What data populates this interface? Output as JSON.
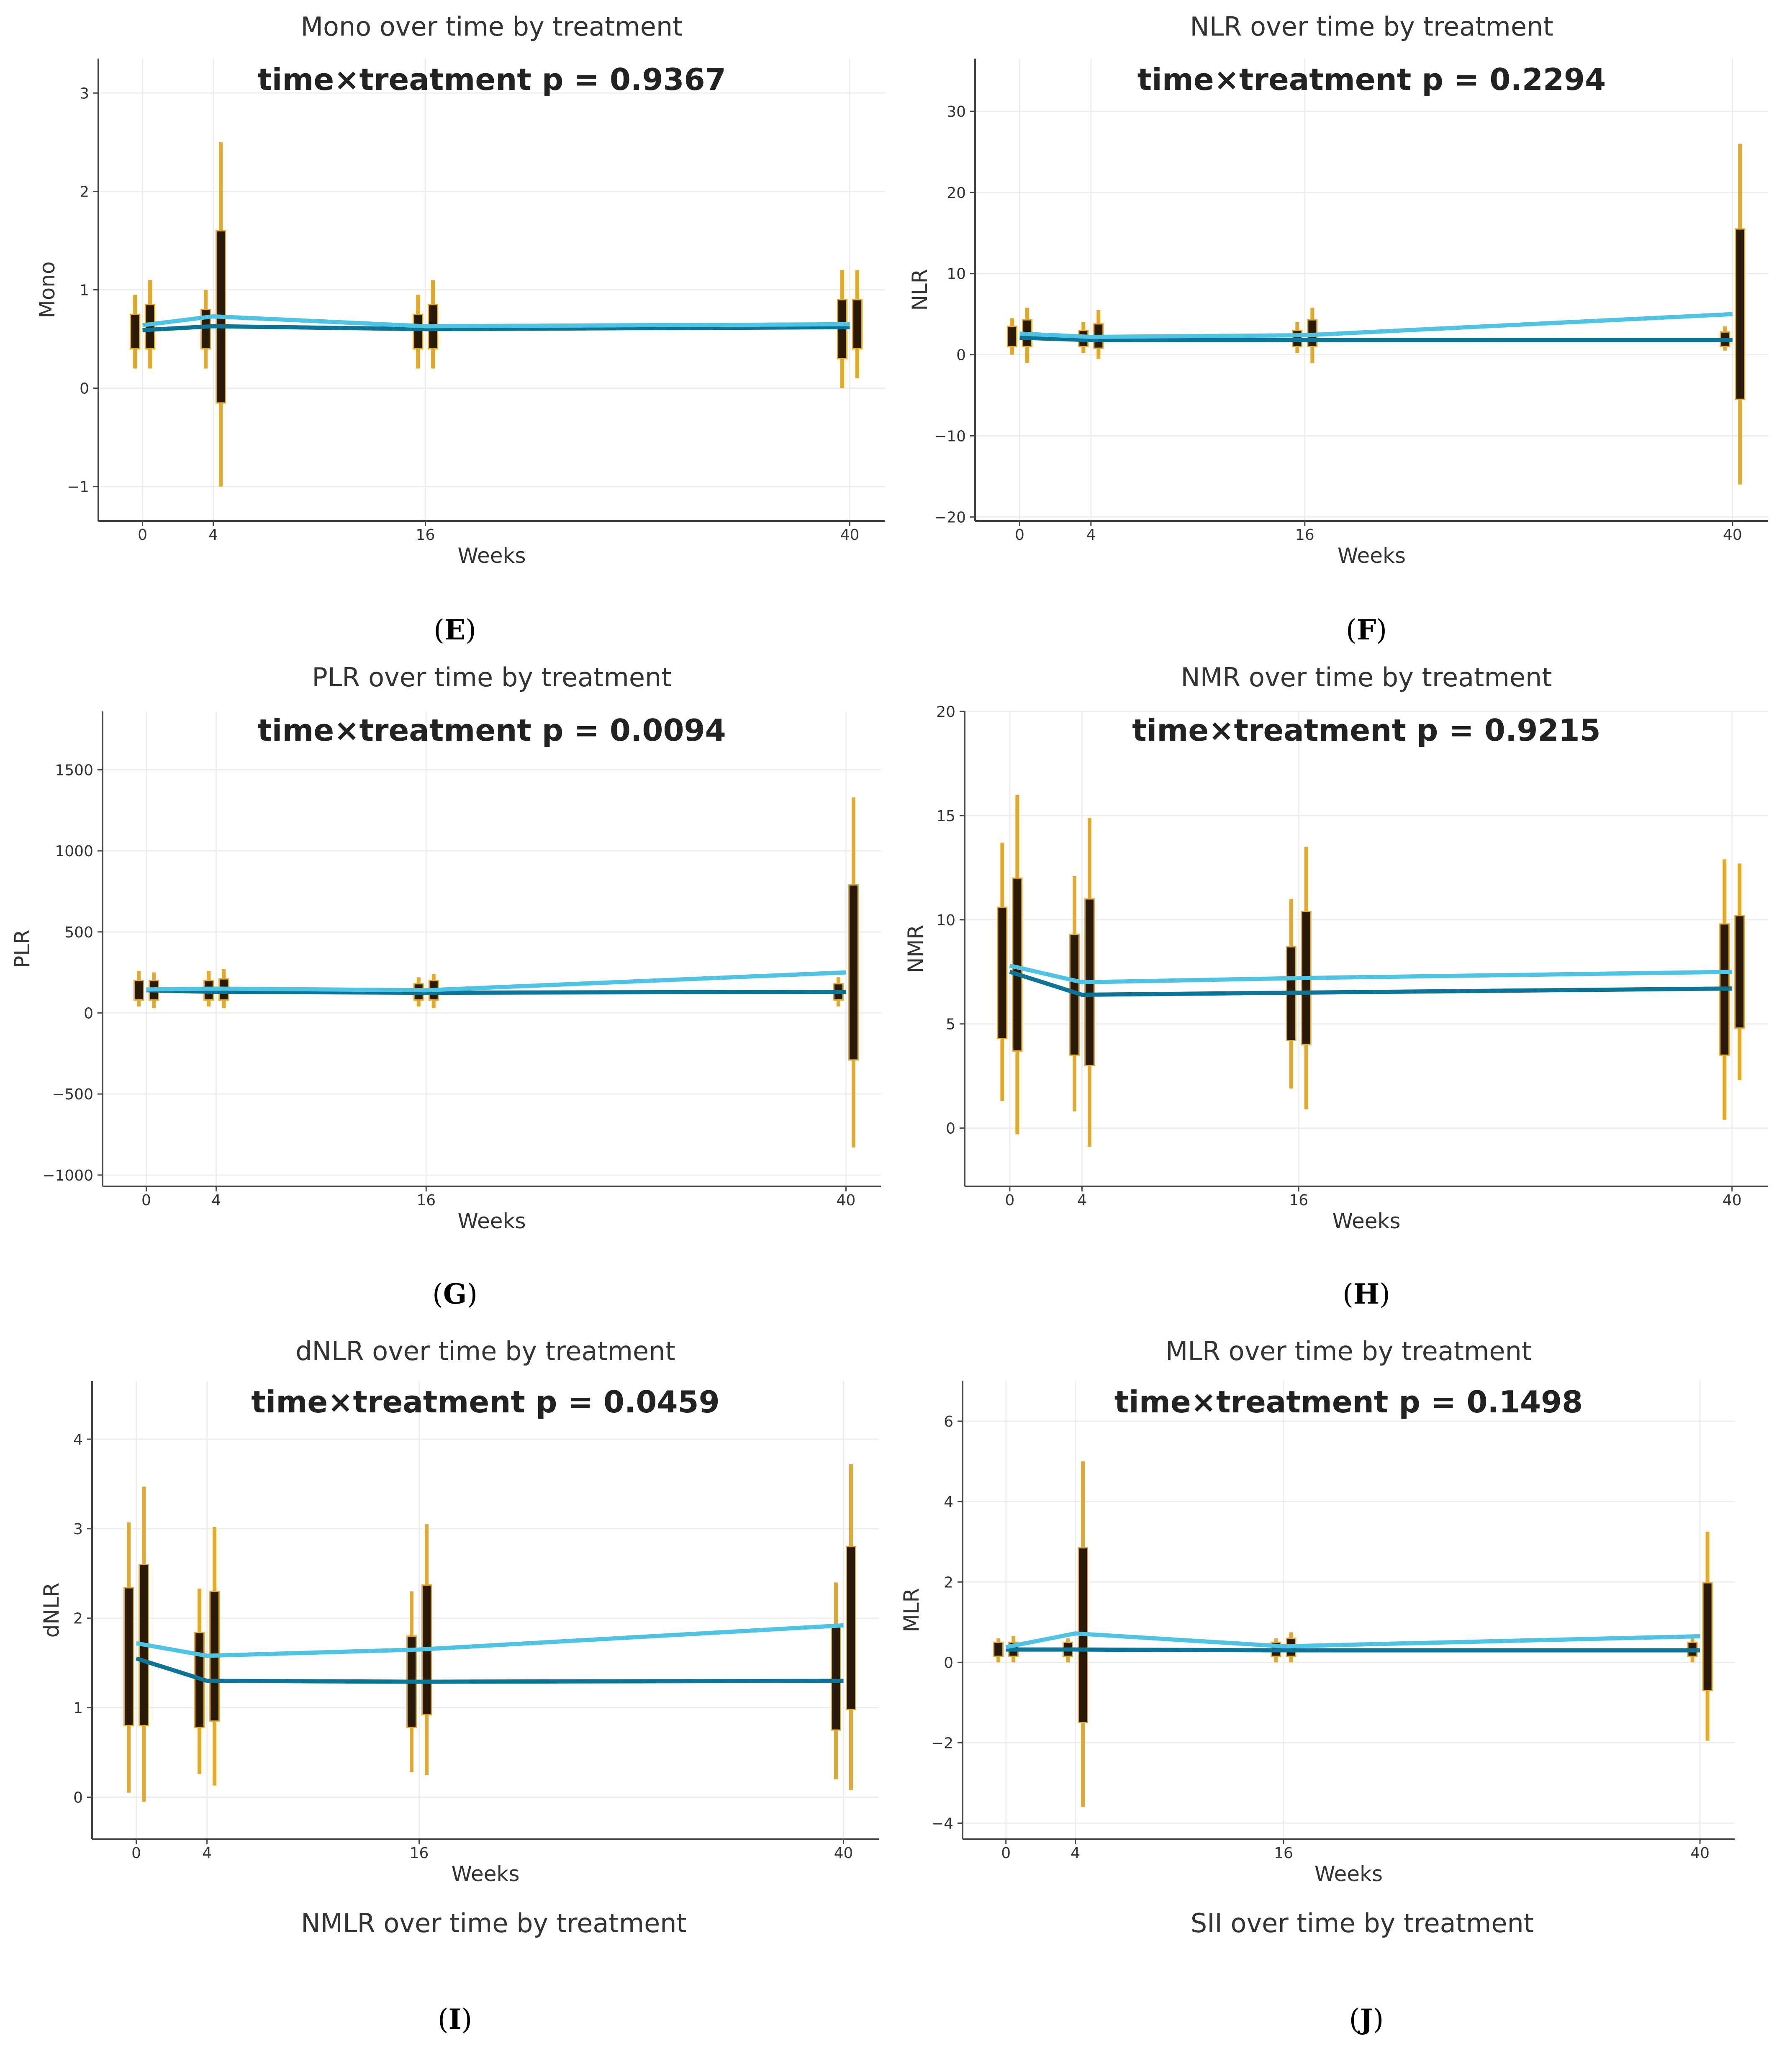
{
  "colors": {
    "whisker": "#E5A92A",
    "box": "#2A1A0A",
    "series_dark": "#0B7497",
    "series_light": "#4FC3E3",
    "axis": "#444444",
    "grid": "#EDEDED"
  },
  "panel_labels": {
    "E": "E",
    "F": "F",
    "G": "G",
    "H": "H",
    "I": "I",
    "J": "J"
  },
  "extra_titles": [
    "NMLR over time by treatment",
    "SII over time by treatment"
  ],
  "chart_data": [
    {
      "id": "mono",
      "label": "E",
      "type": "line",
      "title": "Mono over time by treatment",
      "subtitle": "time×treatment p = 0.9367",
      "xlabel": "Weeks",
      "ylabel": "Mono",
      "x": [
        0,
        4,
        16,
        40
      ],
      "xticks": [
        "0",
        "4",
        "16",
        "40"
      ],
      "ylim": [
        -1.35,
        3.35
      ],
      "yticks": [
        -1,
        0,
        1,
        2,
        3
      ],
      "ytick_labels": [
        "−1",
        "0",
        "1",
        "2",
        "3"
      ],
      "grid": true,
      "series": [
        {
          "values": [
            0.59,
            0.63,
            0.6,
            0.62
          ]
        },
        {
          "values": [
            0.64,
            0.73,
            0.63,
            0.65
          ]
        }
      ],
      "boxes": [
        [
          {
            "whisker": [
              0.2,
              0.95
            ],
            "box": [
              0.4,
              0.75
            ]
          },
          {
            "whisker": [
              0.2,
              1.1
            ],
            "box": [
              0.4,
              0.85
            ]
          }
        ],
        [
          {
            "whisker": [
              0.2,
              1.0
            ],
            "box": [
              0.4,
              0.8
            ]
          },
          {
            "whisker": [
              -1.0,
              2.5
            ],
            "box": [
              -0.15,
              1.6
            ]
          }
        ],
        [
          {
            "whisker": [
              0.2,
              0.95
            ],
            "box": [
              0.4,
              0.75
            ]
          },
          {
            "whisker": [
              0.2,
              1.1
            ],
            "box": [
              0.4,
              0.85
            ]
          }
        ],
        [
          {
            "whisker": [
              0.0,
              1.2
            ],
            "box": [
              0.3,
              0.9
            ]
          },
          {
            "whisker": [
              0.1,
              1.2
            ],
            "box": [
              0.4,
              0.9
            ]
          }
        ]
      ]
    },
    {
      "id": "nlr",
      "label": "F",
      "type": "line",
      "title": "NLR over time by treatment",
      "subtitle": "time×treatment p = 0.2294",
      "xlabel": "Weeks",
      "ylabel": "NLR",
      "x": [
        0,
        4,
        16,
        40
      ],
      "xticks": [
        "0",
        "4",
        "16",
        "40"
      ],
      "ylim": [
        -20.5,
        36.5
      ],
      "yticks": [
        -20,
        -10,
        0,
        10,
        20,
        30
      ],
      "ytick_labels": [
        "−20",
        "−10",
        "0",
        "10",
        "20",
        "30"
      ],
      "grid": true,
      "series": [
        {
          "values": [
            2.1,
            1.8,
            1.8,
            1.8
          ]
        },
        {
          "values": [
            2.6,
            2.2,
            2.4,
            5.0
          ]
        }
      ],
      "boxes": [
        [
          {
            "whisker": [
              0.0,
              4.5
            ],
            "box": [
              1.0,
              3.5
            ]
          },
          {
            "whisker": [
              -1.0,
              5.8
            ],
            "box": [
              1.0,
              4.3
            ]
          }
        ],
        [
          {
            "whisker": [
              0.2,
              4.0
            ],
            "box": [
              1.0,
              3.0
            ]
          },
          {
            "whisker": [
              -0.5,
              5.5
            ],
            "box": [
              0.8,
              3.8
            ]
          }
        ],
        [
          {
            "whisker": [
              0.2,
              4.0
            ],
            "box": [
              1.0,
              3.0
            ]
          },
          {
            "whisker": [
              -1.0,
              5.8
            ],
            "box": [
              1.0,
              4.3
            ]
          }
        ],
        [
          {
            "whisker": [
              0.5,
              3.5
            ],
            "box": [
              1.0,
              2.8
            ]
          },
          {
            "whisker": [
              -16.0,
              26.0
            ],
            "box": [
              -5.5,
              15.5
            ]
          }
        ]
      ]
    },
    {
      "id": "plr",
      "label": "G",
      "type": "line",
      "title": "PLR over time by treatment",
      "subtitle": "time×treatment p = 0.0094",
      "xlabel": "Weeks",
      "ylabel": "PLR",
      "x": [
        0,
        4,
        16,
        40
      ],
      "xticks": [
        "0",
        "4",
        "16",
        "40"
      ],
      "ylim": [
        -1070,
        1860
      ],
      "yticks": [
        -1000,
        -500,
        0,
        500,
        1000,
        1500
      ],
      "ytick_labels": [
        "−1000",
        "−500",
        "0",
        "500",
        "1000",
        "1500"
      ],
      "grid": true,
      "series": [
        {
          "values": [
            140,
            130,
            125,
            130
          ]
        },
        {
          "values": [
            145,
            150,
            140,
            250
          ]
        }
      ],
      "boxes": [
        [
          {
            "whisker": [
              40,
              260
            ],
            "box": [
              80,
              200
            ]
          },
          {
            "whisker": [
              30,
              250
            ],
            "box": [
              80,
              200
            ]
          }
        ],
        [
          {
            "whisker": [
              40,
              260
            ],
            "box": [
              80,
              200
            ]
          },
          {
            "whisker": [
              30,
              270
            ],
            "box": [
              80,
              210
            ]
          }
        ],
        [
          {
            "whisker": [
              40,
              220
            ],
            "box": [
              80,
              180
            ]
          },
          {
            "whisker": [
              30,
              240
            ],
            "box": [
              80,
              200
            ]
          }
        ],
        [
          {
            "whisker": [
              40,
              220
            ],
            "box": [
              80,
              180
            ]
          },
          {
            "whisker": [
              -830,
              1330
            ],
            "box": [
              -290,
              790
            ]
          }
        ]
      ]
    },
    {
      "id": "nmr",
      "label": "H",
      "type": "line",
      "title": "NMR over time by treatment",
      "subtitle": "time×treatment p = 0.9215",
      "xlabel": "Weeks",
      "ylabel": "NMR",
      "x": [
        0,
        4,
        16,
        40
      ],
      "xticks": [
        "0",
        "4",
        "16",
        "40"
      ],
      "ylim": [
        -2.8,
        20.0
      ],
      "yticks": [
        0,
        5,
        10,
        15,
        20
      ],
      "ytick_labels": [
        "0",
        "5",
        "10",
        "15",
        "20"
      ],
      "grid": true,
      "series": [
        {
          "values": [
            7.5,
            6.4,
            6.5,
            6.7
          ]
        },
        {
          "values": [
            7.8,
            7.0,
            7.2,
            7.5
          ]
        }
      ],
      "boxes": [
        [
          {
            "whisker": [
              1.3,
              13.7
            ],
            "box": [
              4.3,
              10.6
            ]
          },
          {
            "whisker": [
              -0.3,
              16.0
            ],
            "box": [
              3.7,
              12.0
            ]
          }
        ],
        [
          {
            "whisker": [
              0.8,
              12.1
            ],
            "box": [
              3.5,
              9.3
            ]
          },
          {
            "whisker": [
              -0.9,
              14.9
            ],
            "box": [
              3.0,
              11.0
            ]
          }
        ],
        [
          {
            "whisker": [
              1.9,
              11.0
            ],
            "box": [
              4.2,
              8.7
            ]
          },
          {
            "whisker": [
              0.9,
              13.5
            ],
            "box": [
              4.0,
              10.4
            ]
          }
        ],
        [
          {
            "whisker": [
              0.4,
              12.9
            ],
            "box": [
              3.5,
              9.8
            ]
          },
          {
            "whisker": [
              2.3,
              12.7
            ],
            "box": [
              4.8,
              10.2
            ]
          }
        ]
      ]
    },
    {
      "id": "dnlr",
      "label": "I",
      "type": "line",
      "title": "dNLR over time by treatment",
      "subtitle": "time×treatment p = 0.0459",
      "xlabel": "Weeks",
      "ylabel": "dNLR",
      "x": [
        0,
        4,
        16,
        40
      ],
      "xticks": [
        "0",
        "4",
        "16",
        "40"
      ],
      "ylim": [
        -0.47,
        4.65
      ],
      "yticks": [
        0,
        1,
        2,
        3,
        4
      ],
      "ytick_labels": [
        "0",
        "1",
        "2",
        "3",
        "4"
      ],
      "grid": true,
      "series": [
        {
          "values": [
            1.55,
            1.3,
            1.29,
            1.3
          ]
        },
        {
          "values": [
            1.72,
            1.58,
            1.65,
            1.92
          ]
        }
      ],
      "boxes": [
        [
          {
            "whisker": [
              0.05,
              3.07
            ],
            "box": [
              0.8,
              2.34
            ]
          },
          {
            "whisker": [
              -0.05,
              3.47
            ],
            "box": [
              0.8,
              2.6
            ]
          }
        ],
        [
          {
            "whisker": [
              0.26,
              2.33
            ],
            "box": [
              0.78,
              1.84
            ]
          },
          {
            "whisker": [
              0.13,
              3.02
            ],
            "box": [
              0.85,
              2.3
            ]
          }
        ],
        [
          {
            "whisker": [
              0.28,
              2.3
            ],
            "box": [
              0.78,
              1.8
            ]
          },
          {
            "whisker": [
              0.25,
              3.05
            ],
            "box": [
              0.92,
              2.37
            ]
          }
        ],
        [
          {
            "whisker": [
              0.2,
              2.4
            ],
            "box": [
              0.75,
              1.92
            ]
          },
          {
            "whisker": [
              0.08,
              3.72
            ],
            "box": [
              0.98,
              2.8
            ]
          }
        ]
      ]
    },
    {
      "id": "mlr",
      "label": "J",
      "type": "line",
      "title": "MLR over time by treatment",
      "subtitle": "time×treatment p = 0.1498",
      "xlabel": "Weeks",
      "ylabel": "MLR",
      "x": [
        0,
        4,
        16,
        40
      ],
      "xticks": [
        "0",
        "4",
        "16",
        "40"
      ],
      "ylim": [
        -4.4,
        7.0
      ],
      "yticks": [
        -4,
        -2,
        0,
        2,
        4,
        6
      ],
      "ytick_labels": [
        "−4",
        "−2",
        "0",
        "2",
        "4",
        "6"
      ],
      "grid": true,
      "series": [
        {
          "values": [
            0.32,
            0.32,
            0.3,
            0.3
          ]
        },
        {
          "values": [
            0.38,
            0.72,
            0.4,
            0.65
          ]
        }
      ],
      "boxes": [
        [
          {
            "whisker": [
              0.0,
              0.6
            ],
            "box": [
              0.15,
              0.5
            ]
          },
          {
            "whisker": [
              0.0,
              0.65
            ],
            "box": [
              0.15,
              0.5
            ]
          }
        ],
        [
          {
            "whisker": [
              0.0,
              0.6
            ],
            "box": [
              0.15,
              0.5
            ]
          },
          {
            "whisker": [
              -3.6,
              5.0
            ],
            "box": [
              -1.5,
              2.85
            ]
          }
        ],
        [
          {
            "whisker": [
              0.0,
              0.6
            ],
            "box": [
              0.15,
              0.5
            ]
          },
          {
            "whisker": [
              0.0,
              0.75
            ],
            "box": [
              0.15,
              0.6
            ]
          }
        ],
        [
          {
            "whisker": [
              0.0,
              0.6
            ],
            "box": [
              0.15,
              0.5
            ]
          },
          {
            "whisker": [
              -1.95,
              3.25
            ],
            "box": [
              -0.7,
              1.98
            ]
          }
        ]
      ]
    }
  ]
}
